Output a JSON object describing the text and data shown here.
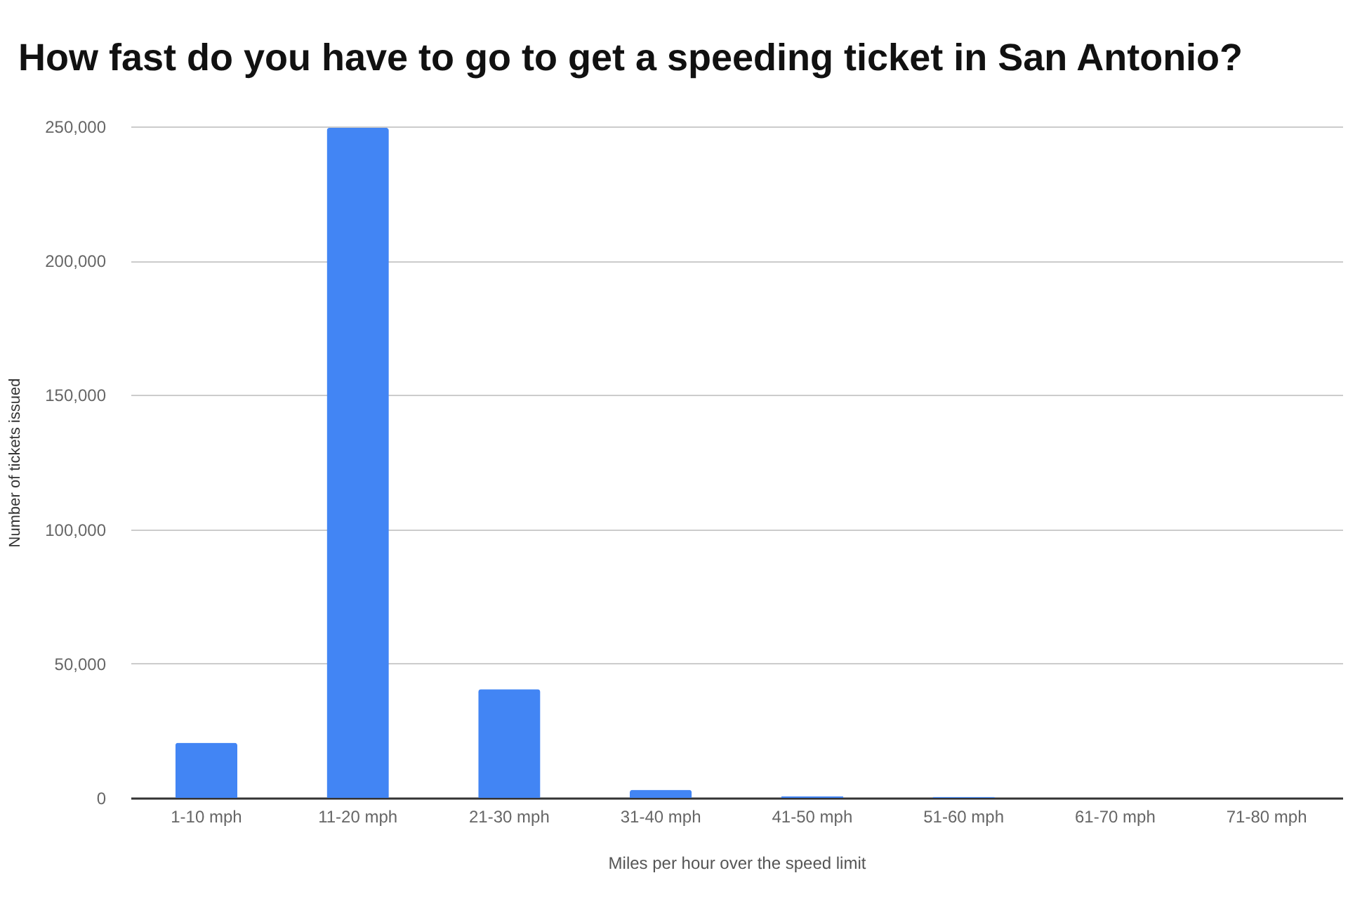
{
  "chart_data": {
    "type": "bar",
    "title": "How fast do you have to go to get a speeding ticket in San Antonio?",
    "xlabel": "Miles per hour over the speed limit",
    "ylabel": "Number of tickets issued",
    "categories": [
      "1-10 mph",
      "11-20 mph",
      "21-30 mph",
      "31-40 mph",
      "41-50 mph",
      "51-60 mph",
      "61-70 mph",
      "71-80 mph"
    ],
    "values": [
      20500,
      249500,
      40500,
      3000,
      600,
      400,
      0,
      0
    ],
    "color": "#4285f4",
    "ylim": [
      0,
      250000
    ],
    "yticks": [
      0,
      {
        "value": 50000,
        "label": "50,000"
      },
      {
        "value": 100000,
        "label": "100,000"
      },
      {
        "value": 150000,
        "label": "150,000"
      },
      {
        "value": 200000,
        "label": "200,000"
      },
      {
        "value": 250000,
        "label": "250,000"
      }
    ],
    "grid": "y"
  }
}
